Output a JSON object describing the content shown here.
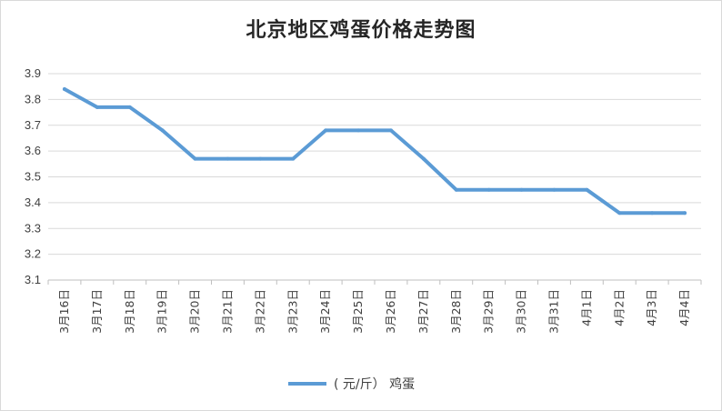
{
  "chart_data": {
    "type": "line",
    "title": "北京地区鸡蛋价格走势图",
    "xlabel": "",
    "ylabel": "",
    "categories": [
      "3月16日",
      "3月17日",
      "3月18日",
      "3月19日",
      "3月20日",
      "3月21日",
      "3月22日",
      "3月23日",
      "3月24日",
      "3月25日",
      "3月26日",
      "3月27日",
      "3月28日",
      "3月29日",
      "3月30日",
      "3月31日",
      "4月1日",
      "4月2日",
      "4月3日",
      "4月4日"
    ],
    "series": [
      {
        "name": "( 元/斤） 鸡蛋",
        "color": "#5b9bd5",
        "values": [
          3.84,
          3.77,
          3.77,
          3.68,
          3.57,
          3.57,
          3.57,
          3.57,
          3.68,
          3.68,
          3.68,
          3.57,
          3.45,
          3.45,
          3.45,
          3.45,
          3.45,
          3.36,
          3.36,
          3.36
        ]
      }
    ],
    "ylim": [
      3.1,
      3.9
    ],
    "yticks": [
      "3.1",
      "3.2",
      "3.3",
      "3.4",
      "3.5",
      "3.6",
      "3.7",
      "3.8",
      "3.9"
    ],
    "grid": true,
    "legend": "bottom"
  }
}
